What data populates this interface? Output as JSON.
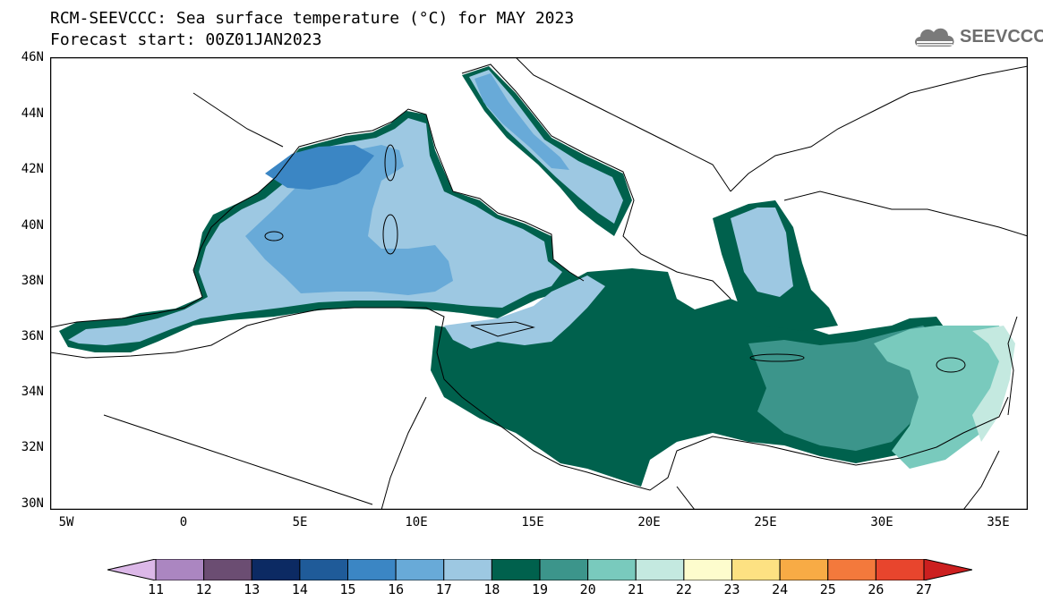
{
  "header": {
    "title": "RCM-SEEVCCC: Sea surface temperature (°C) for MAY 2023",
    "subtitle": "Forecast start: 00Z01JAN2023"
  },
  "logo": {
    "text": "SEEVCCC",
    "icon": "cloud-logo-icon",
    "color": "#6e6e6e"
  },
  "map": {
    "type": "filled-contour-map",
    "region": "Mediterranean Sea",
    "lat_range": [
      30,
      46
    ],
    "lon_range": [
      -6,
      36
    ],
    "lat_ticks": [
      "46N",
      "44N",
      "42N",
      "40N",
      "38N",
      "36N",
      "34N",
      "32N",
      "30N"
    ],
    "lon_ticks": [
      "5W",
      "0",
      "5E",
      "10E",
      "15E",
      "20E",
      "25E",
      "30E",
      "35E"
    ],
    "land_color": "#ffffff",
    "border_color": "#000000"
  },
  "colorbar": {
    "labels": [
      "11",
      "12",
      "13",
      "14",
      "15",
      "16",
      "17",
      "18",
      "19",
      "20",
      "21",
      "22",
      "23",
      "24",
      "25",
      "26",
      "27"
    ],
    "colors": [
      "#dcb8e8",
      "#ab86c1",
      "#6b4d72",
      "#0c2a63",
      "#1f5b99",
      "#3b86c4",
      "#68aad8",
      "#9dc8e2",
      "#00614d",
      "#3c958b",
      "#79cabd",
      "#c4e9e0",
      "#fdfccd",
      "#fde182",
      "#f8ab45",
      "#f3793c",
      "#e8452d",
      "#cc1f1f"
    ],
    "unit": "°C"
  }
}
